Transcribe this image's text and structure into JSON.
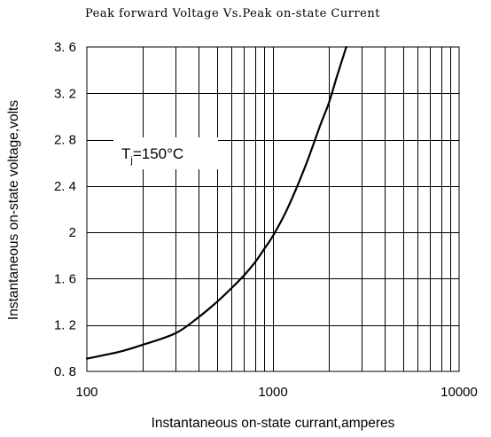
{
  "chart_data": {
    "type": "line",
    "title": "Peak forward Voltage Vs.Peak on-state Current",
    "xlabel": "Instantaneous on-state currant,amperes",
    "ylabel": "Instantaneous on-state voltage,volts",
    "x_scale": "log",
    "xlim": [
      100,
      10000
    ],
    "ylim": [
      0.8,
      3.6
    ],
    "x_tick_values": [
      100,
      1000,
      10000
    ],
    "x_tick_labels": [
      "100",
      "1000",
      "10000"
    ],
    "y_tick_values": [
      0.8,
      1.2,
      1.6,
      2.0,
      2.4,
      2.8,
      3.2,
      3.6
    ],
    "y_tick_labels": [
      "0. 8",
      "1. 2",
      "1. 6",
      "2",
      "2. 4",
      "2. 8",
      "3. 2",
      "3. 6"
    ],
    "grid": true,
    "annotation": {
      "main": "T",
      "sub": "j",
      "rest": "=150°C"
    },
    "series": [
      {
        "x": [
          100,
          150,
          200,
          300,
          400,
          500,
          600,
          700,
          800,
          900,
          1000,
          1200,
          1500,
          1800,
          2000,
          2200,
          2500
        ],
        "y": [
          0.91,
          0.97,
          1.03,
          1.13,
          1.27,
          1.4,
          1.52,
          1.63,
          1.74,
          1.86,
          1.97,
          2.21,
          2.58,
          2.93,
          3.12,
          3.34,
          3.62
        ]
      }
    ]
  }
}
